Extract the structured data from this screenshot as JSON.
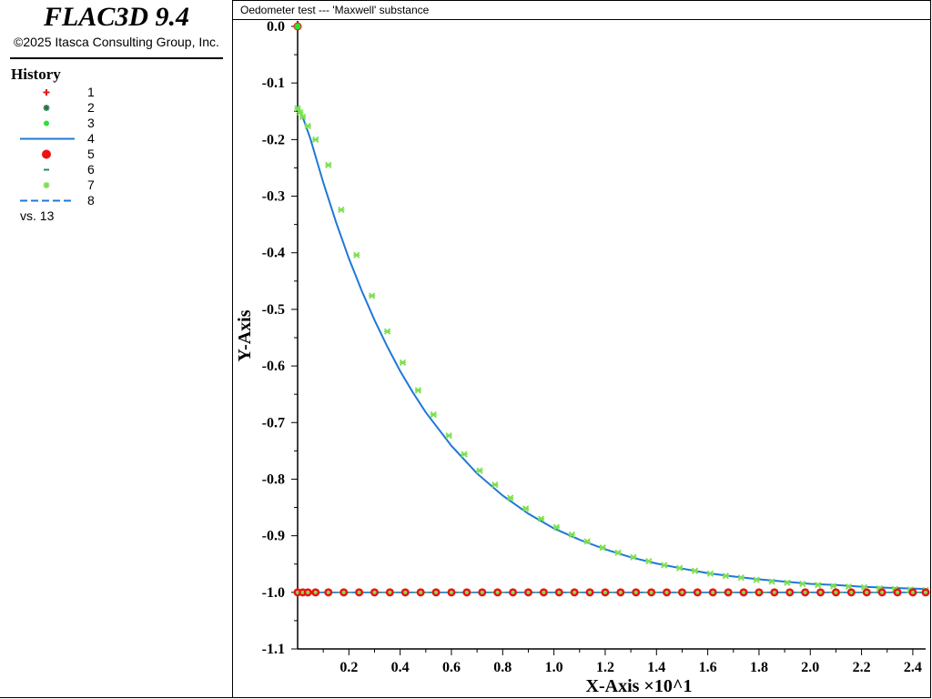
{
  "app": {
    "title": "FLAC3D 9.4",
    "copyright": "©2025 Itasca Consulting Group, Inc."
  },
  "legend": {
    "title": "History",
    "items": [
      {
        "label": "1",
        "marker": "plus",
        "color": "#e0141e"
      },
      {
        "label": "2",
        "marker": "cross",
        "color": "#1f7a46"
      },
      {
        "label": "3",
        "marker": "dot",
        "color": "#33dd33"
      },
      {
        "label": "4",
        "marker": "line",
        "color": "#1f78d6"
      },
      {
        "label": "5",
        "marker": "big-dot",
        "color": "#ee1111"
      },
      {
        "label": "6",
        "marker": "dash",
        "color": "#2a8a6a"
      },
      {
        "label": "7",
        "marker": "cross",
        "color": "#7de050"
      },
      {
        "label": "8",
        "marker": "dashed-line",
        "color": "#1f78d6"
      }
    ],
    "vs_label": "vs. 13"
  },
  "chart_data": {
    "type": "line",
    "title": "Oedometer test --- 'Maxwell' substance",
    "xlabel": "X-Axis ×10^1",
    "ylabel": "Y-Axis",
    "xlim": [
      0,
      2.45
    ],
    "ylim": [
      -1.1,
      0.0
    ],
    "xticks": [
      "0.2",
      "0.4",
      "0.6",
      "0.8",
      "1.0",
      "1.2",
      "1.4",
      "1.6",
      "1.8",
      "2.0",
      "2.2",
      "2.4"
    ],
    "yticks": [
      "0.0",
      "-0.1",
      "-0.2",
      "-0.3",
      "-0.4",
      "-0.5",
      "-0.6",
      "-0.7",
      "-0.8",
      "-0.9",
      "-1.0",
      "-1.1"
    ],
    "grid": false,
    "legend_position": "left panel",
    "series": [
      {
        "name": "4",
        "style": "line",
        "color": "#1f78d6",
        "x": [
          0,
          0.02,
          0.05,
          0.1,
          0.15,
          0.2,
          0.25,
          0.3,
          0.35,
          0.4,
          0.45,
          0.5,
          0.6,
          0.7,
          0.8,
          0.9,
          1.0,
          1.1,
          1.2,
          1.3,
          1.4,
          1.5,
          1.6,
          1.7,
          1.8,
          1.9,
          2.0,
          2.1,
          2.2,
          2.3,
          2.45
        ],
        "y": [
          -0.14,
          -0.16,
          -0.199,
          -0.276,
          -0.346,
          -0.41,
          -0.467,
          -0.519,
          -0.566,
          -0.609,
          -0.647,
          -0.682,
          -0.741,
          -0.79,
          -0.829,
          -0.861,
          -0.887,
          -0.907,
          -0.924,
          -0.938,
          -0.949,
          -0.958,
          -0.966,
          -0.972,
          -0.977,
          -0.981,
          -0.985,
          -0.987,
          -0.99,
          -0.992,
          -0.994
        ]
      },
      {
        "name": "7",
        "style": "markers",
        "color": "#7de050",
        "x": [
          0.0,
          0.01,
          0.02,
          0.04,
          0.07,
          0.12,
          0.17,
          0.23,
          0.29,
          0.35,
          0.41,
          0.47,
          0.53,
          0.59,
          0.65,
          0.71,
          0.77,
          0.83,
          0.89,
          0.95,
          1.01,
          1.07,
          1.13,
          1.19,
          1.25,
          1.31,
          1.37,
          1.43,
          1.49,
          1.55,
          1.61,
          1.67,
          1.73,
          1.79,
          1.85,
          1.91,
          1.97,
          2.03,
          2.09,
          2.15,
          2.21,
          2.27,
          2.33,
          2.39,
          2.45
        ],
        "y": [
          -0.145,
          -0.152,
          -0.16,
          -0.176,
          -0.2,
          -0.245,
          -0.324,
          -0.404,
          -0.476,
          -0.539,
          -0.594,
          -0.643,
          -0.686,
          -0.723,
          -0.756,
          -0.785,
          -0.81,
          -0.833,
          -0.852,
          -0.87,
          -0.885,
          -0.898,
          -0.91,
          -0.921,
          -0.93,
          -0.938,
          -0.945,
          -0.952,
          -0.957,
          -0.962,
          -0.967,
          -0.971,
          -0.974,
          -0.978,
          -0.981,
          -0.983,
          -0.985,
          -0.987,
          -0.989,
          -0.99,
          -0.991,
          -0.993,
          -0.994,
          -0.995,
          -0.996
        ]
      },
      {
        "name": "5",
        "style": "markers",
        "color": "#ee1111",
        "x": [
          0.0,
          0.02,
          0.04,
          0.07,
          0.12,
          0.18,
          0.24,
          0.3,
          0.36,
          0.42,
          0.48,
          0.54,
          0.6,
          0.66,
          0.72,
          0.78,
          0.84,
          0.9,
          0.96,
          1.02,
          1.08,
          1.14,
          1.2,
          1.26,
          1.32,
          1.38,
          1.44,
          1.5,
          1.56,
          1.62,
          1.68,
          1.74,
          1.8,
          1.86,
          1.92,
          1.98,
          2.04,
          2.1,
          2.16,
          2.22,
          2.28,
          2.34,
          2.4,
          2.45
        ],
        "y": [
          -1.0,
          -1.0,
          -1.0,
          -1.0,
          -1.0,
          -1.0,
          -1.0,
          -1.0,
          -1.0,
          -1.0,
          -1.0,
          -1.0,
          -1.0,
          -1.0,
          -1.0,
          -1.0,
          -1.0,
          -1.0,
          -1.0,
          -1.0,
          -1.0,
          -1.0,
          -1.0,
          -1.0,
          -1.0,
          -1.0,
          -1.0,
          -1.0,
          -1.0,
          -1.0,
          -1.0,
          -1.0,
          -1.0,
          -1.0,
          -1.0,
          -1.0,
          -1.0,
          -1.0,
          -1.0,
          -1.0,
          -1.0,
          -1.0,
          -1.0,
          -1.0
        ]
      },
      {
        "name": "3",
        "style": "markers",
        "color": "#33dd33",
        "x": [
          0.0
        ],
        "y": [
          0.0
        ]
      }
    ]
  }
}
